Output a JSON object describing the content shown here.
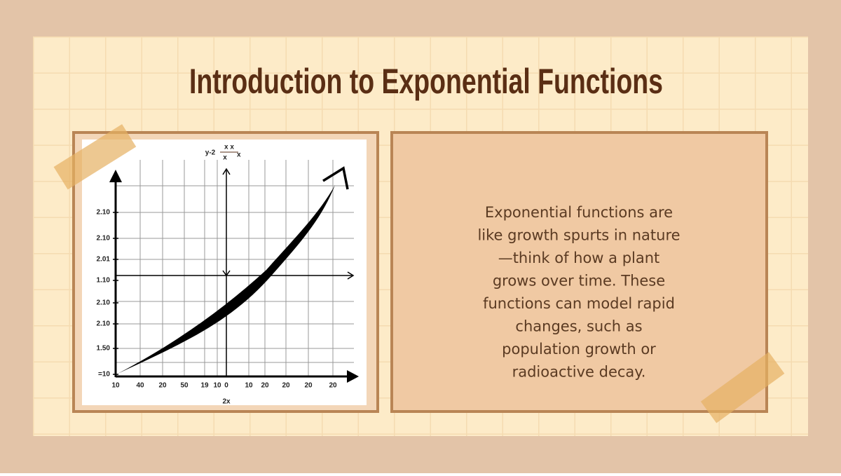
{
  "title": "Introduction to Exponential Functions",
  "body": {
    "lines": [
      "Exponential functions are",
      "like growth spurts in nature",
      "—think of how a plant",
      "grows over time. These",
      "functions can model rapid",
      "changes, such as",
      "population growth or",
      "radioactive decay."
    ]
  },
  "figure": {
    "formula": {
      "lead": "y-2",
      "numerator": "x x",
      "denominator": "x",
      "tail": "x"
    },
    "y_labels": [
      "2.10",
      "2.10",
      "2.01",
      "1.10",
      "2.10",
      "2.10",
      "1.50",
      "=10"
    ],
    "x_labels": [
      "10",
      "40",
      "20",
      "50",
      "19",
      "10",
      "0",
      "10",
      "20",
      "20",
      "20",
      "20"
    ],
    "x_axis_label": "2x"
  }
}
